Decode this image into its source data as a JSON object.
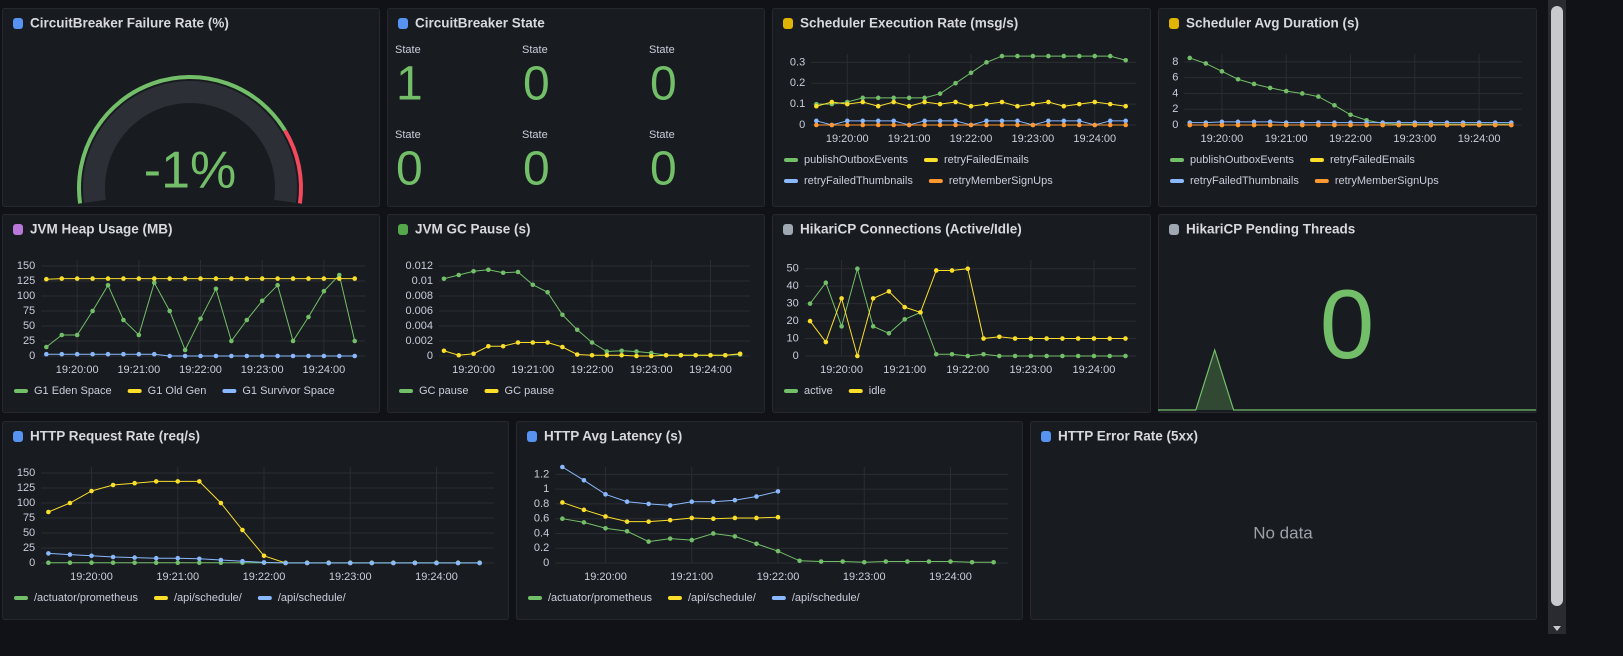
{
  "chart_data": [
    {
      "type": "gauge",
      "title": "CircuitBreaker Failure Rate (%)",
      "value": -1,
      "value_label": "-1%",
      "ylim": [
        0,
        100
      ],
      "color": "#73bf69",
      "thresholds": [
        {
          "value": 80,
          "color": "#f2495c"
        }
      ]
    },
    {
      "type": "stat",
      "title": "CircuitBreaker State",
      "categories": [
        "State",
        "State",
        "State",
        "State",
        "State",
        "State"
      ],
      "values": [
        1,
        0,
        0,
        0,
        0,
        0
      ],
      "color": "#73bf69"
    },
    {
      "type": "line",
      "title": "Scheduler Execution Rate (msg/s)",
      "x": [
        "19:19:30",
        "19:19:45",
        "19:20:00",
        "19:20:15",
        "19:20:30",
        "19:20:45",
        "19:21:00",
        "19:21:15",
        "19:21:30",
        "19:21:45",
        "19:22:00",
        "19:22:15",
        "19:22:30",
        "19:22:45",
        "19:23:00",
        "19:23:15",
        "19:23:30",
        "19:23:45",
        "19:24:00",
        "19:24:15",
        "19:24:30"
      ],
      "xlim": [
        "19:19:25",
        "19:24:40"
      ],
      "xticks": [
        "19:20:00",
        "19:21:00",
        "19:22:00",
        "19:23:00",
        "19:24:00"
      ],
      "ylim": [
        0,
        0.34
      ],
      "yticks": [
        0,
        0.1,
        0.2,
        0.3
      ],
      "grid": true,
      "series": [
        {
          "name": "publishOutboxEvents",
          "color": "#73bf69",
          "values": [
            0.1,
            0.1,
            0.11,
            0.13,
            0.13,
            0.13,
            0.13,
            0.13,
            0.15,
            0.2,
            0.25,
            0.3,
            0.33,
            0.33,
            0.33,
            0.33,
            0.33,
            0.33,
            0.33,
            0.33,
            0.31
          ]
        },
        {
          "name": "retryFailedEmails",
          "color": "#fade2a",
          "values": [
            0.09,
            0.11,
            0.1,
            0.11,
            0.09,
            0.11,
            0.09,
            0.11,
            0.1,
            0.11,
            0.09,
            0.1,
            0.11,
            0.09,
            0.1,
            0.11,
            0.09,
            0.1,
            0.11,
            0.1,
            0.09
          ]
        },
        {
          "name": "retryFailedThumbnails",
          "color": "#8ab8ff",
          "values": [
            0.02,
            0,
            0.02,
            0.02,
            0.02,
            0.02,
            0,
            0.02,
            0.02,
            0.02,
            0,
            0.02,
            0.02,
            0.02,
            0,
            0.02,
            0.02,
            0.02,
            0,
            0.02,
            0.02
          ]
        },
        {
          "name": "retryMemberSignUps",
          "color": "#ff9830",
          "values": [
            0,
            0,
            0,
            0,
            0,
            0,
            0,
            0,
            0,
            0,
            0,
            0,
            0,
            0,
            0,
            0,
            0,
            0,
            0,
            0,
            0
          ]
        }
      ]
    },
    {
      "type": "line",
      "title": "Scheduler Avg Duration (s)",
      "x": [
        "19:19:30",
        "19:19:45",
        "19:20:00",
        "19:20:15",
        "19:20:30",
        "19:20:45",
        "19:21:00",
        "19:21:15",
        "19:21:30",
        "19:21:45",
        "19:22:00",
        "19:22:15",
        "19:22:30",
        "19:22:45",
        "19:23:00",
        "19:23:15",
        "19:23:30",
        "19:23:45",
        "19:24:00",
        "19:24:15",
        "19:24:30"
      ],
      "xlim": [
        "19:19:25",
        "19:24:40"
      ],
      "xticks": [
        "19:20:00",
        "19:21:00",
        "19:22:00",
        "19:23:00",
        "19:24:00"
      ],
      "ylim": [
        0,
        9
      ],
      "yticks": [
        0,
        2,
        4,
        6,
        8
      ],
      "grid": true,
      "series": [
        {
          "name": "publishOutboxEvents",
          "color": "#73bf69",
          "values": [
            8.5,
            7.8,
            6.8,
            5.8,
            5.2,
            4.7,
            4.3,
            4,
            3.6,
            2.5,
            1.3,
            0.6,
            0.2,
            0.1,
            0.1,
            0.1,
            0.1,
            0.1,
            0.1,
            0.1,
            0.1
          ]
        },
        {
          "name": "retryFailedEmails",
          "color": "#fade2a",
          "values": [
            0,
            0,
            0,
            0,
            0,
            0,
            0,
            0,
            0,
            0,
            0,
            0,
            0,
            0,
            0,
            0,
            0,
            0,
            0,
            0,
            0
          ]
        },
        {
          "name": "retryFailedThumbnails",
          "color": "#8ab8ff",
          "values": [
            0.3,
            0.3,
            0.4,
            0.4,
            0.4,
            0.4,
            0.3,
            0.3,
            0.3,
            0.3,
            0.3,
            0.3,
            0.3,
            0.3,
            0.3,
            0.3,
            0.3,
            0.3,
            0.3,
            0.3,
            0.3
          ]
        },
        {
          "name": "retryMemberSignUps",
          "color": "#ff9830",
          "values": [
            0,
            0,
            0,
            0,
            0,
            0,
            0,
            0,
            0,
            0,
            0,
            0,
            0,
            0,
            0,
            0,
            0,
            0,
            0,
            0,
            0
          ]
        }
      ]
    },
    {
      "type": "line",
      "title": "JVM Heap Usage (MB)",
      "x": [
        "19:19:30",
        "19:19:45",
        "19:20:00",
        "19:20:15",
        "19:20:30",
        "19:20:45",
        "19:21:00",
        "19:21:15",
        "19:21:30",
        "19:21:45",
        "19:22:00",
        "19:22:15",
        "19:22:30",
        "19:22:45",
        "19:23:00",
        "19:23:15",
        "19:23:30",
        "19:23:45",
        "19:24:00",
        "19:24:15",
        "19:24:30"
      ],
      "xlim": [
        "19:19:25",
        "19:24:40"
      ],
      "xticks": [
        "19:20:00",
        "19:21:00",
        "19:22:00",
        "19:23:00",
        "19:24:00"
      ],
      "ylim": [
        0,
        160
      ],
      "yticks": [
        0,
        25,
        50,
        75,
        100,
        125,
        150
      ],
      "grid": true,
      "series": [
        {
          "name": "G1 Eden Space",
          "color": "#73bf69",
          "values": [
            15,
            35,
            35,
            75,
            118,
            60,
            35,
            122,
            75,
            10,
            62,
            112,
            25,
            60,
            92,
            118,
            25,
            65,
            108,
            135,
            25
          ]
        },
        {
          "name": "G1 Old Gen",
          "color": "#fade2a",
          "values": [
            128,
            129,
            129,
            129,
            129,
            129,
            129,
            129,
            129,
            129,
            129,
            129,
            129,
            129,
            129,
            129,
            129,
            129,
            129,
            129,
            129
          ]
        },
        {
          "name": "G1 Survivor Space",
          "color": "#8ab8ff",
          "values": [
            3,
            3,
            3,
            3,
            3,
            3,
            3,
            3,
            0,
            0,
            0,
            0,
            0,
            0,
            0,
            0,
            0,
            0,
            0,
            0,
            0
          ]
        }
      ]
    },
    {
      "type": "line",
      "title": "JVM GC Pause (s)",
      "x": [
        "19:19:30",
        "19:19:45",
        "19:20:00",
        "19:20:15",
        "19:20:30",
        "19:20:45",
        "19:21:00",
        "19:21:15",
        "19:21:30",
        "19:21:45",
        "19:22:00",
        "19:22:15",
        "19:22:30",
        "19:22:45",
        "19:23:00",
        "19:23:15",
        "19:23:30",
        "19:23:45",
        "19:24:00",
        "19:24:15",
        "19:24:30"
      ],
      "xlim": [
        "19:19:25",
        "19:24:40"
      ],
      "xticks": [
        "19:20:00",
        "19:21:00",
        "19:22:00",
        "19:23:00",
        "19:24:00"
      ],
      "ylim": [
        0,
        0.0128
      ],
      "yticks": [
        0,
        0.002,
        0.004,
        0.006,
        0.008,
        0.01,
        0.012
      ],
      "grid": true,
      "series": [
        {
          "name": "GC pause",
          "color": "#73bf69",
          "values": [
            0.0103,
            0.0108,
            0.0113,
            0.0115,
            0.0111,
            0.0112,
            0.0095,
            0.0085,
            0.0055,
            0.0035,
            0.0018,
            0.0006,
            0.0007,
            0.0006,
            0.0004,
            0.0001,
            0.0001,
            0.0001,
            0.0001,
            0.0001,
            0.0002
          ]
        },
        {
          "name": "GC pause",
          "color": "#fade2a",
          "values": [
            0.0007,
            0.0001,
            0.0003,
            0.0013,
            0.0013,
            0.0018,
            0.0018,
            0.0018,
            0.0012,
            0.0002,
            0.0001,
            0.0001,
            0.0001,
            0,
            0,
            0.0001,
            0.0001,
            0.0001,
            0.0001,
            0.0001,
            0.0003
          ]
        }
      ]
    },
    {
      "type": "line",
      "title": "HikariCP Connections (Active/Idle)",
      "x": [
        "19:19:30",
        "19:19:45",
        "19:20:00",
        "19:20:15",
        "19:20:30",
        "19:20:45",
        "19:21:00",
        "19:21:15",
        "19:21:30",
        "19:21:45",
        "19:22:00",
        "19:22:15",
        "19:22:30",
        "19:22:45",
        "19:23:00",
        "19:23:15",
        "19:23:30",
        "19:23:45",
        "19:24:00",
        "19:24:15",
        "19:24:30"
      ],
      "xlim": [
        "19:19:25",
        "19:24:40"
      ],
      "xticks": [
        "19:20:00",
        "19:21:00",
        "19:22:00",
        "19:23:00",
        "19:24:00"
      ],
      "ylim": [
        0,
        55
      ],
      "yticks": [
        0,
        10,
        20,
        30,
        40,
        50
      ],
      "grid": true,
      "series": [
        {
          "name": "active",
          "color": "#73bf69",
          "values": [
            30,
            42,
            17,
            50,
            17,
            13,
            21,
            25,
            1,
            1,
            0,
            1,
            0,
            0,
            0,
            0,
            0,
            0,
            0,
            0,
            0
          ]
        },
        {
          "name": "idle",
          "color": "#fade2a",
          "values": [
            20,
            8,
            33,
            0,
            33,
            37,
            28,
            25,
            49,
            49,
            50,
            10,
            11,
            10,
            10,
            10,
            10,
            10,
            10,
            10,
            10
          ]
        }
      ]
    },
    {
      "type": "stat",
      "title": "HikariCP Pending Threads",
      "value": 0,
      "color": "#73bf69",
      "sparkline": [
        0,
        0,
        0,
        1,
        0,
        0,
        0,
        0,
        0,
        0,
        0,
        0,
        0,
        0,
        0,
        0,
        0,
        0,
        0,
        0,
        0
      ],
      "ylim": [
        0,
        3
      ]
    },
    {
      "type": "line",
      "title": "HTTP Request Rate (req/s)",
      "x": [
        "19:19:30",
        "19:19:45",
        "19:20:00",
        "19:20:15",
        "19:20:30",
        "19:20:45",
        "19:21:00",
        "19:21:15",
        "19:21:30",
        "19:21:45",
        "19:22:00",
        "19:22:15",
        "19:22:30",
        "19:22:45",
        "19:23:00",
        "19:23:15",
        "19:23:30",
        "19:23:45",
        "19:24:00",
        "19:24:15",
        "19:24:30"
      ],
      "xlim": [
        "19:19:25",
        "19:24:40"
      ],
      "xticks": [
        "19:20:00",
        "19:21:00",
        "19:22:00",
        "19:23:00",
        "19:24:00"
      ],
      "ylim": [
        0,
        160
      ],
      "yticks": [
        0,
        25,
        50,
        75,
        100,
        125,
        150
      ],
      "grid": true,
      "series": [
        {
          "name": "/actuator/prometheus",
          "color": "#73bf69",
          "values": [
            0.5,
            0.5,
            0.5,
            0.5,
            0.5,
            0.5,
            0.5,
            0.5,
            0.5,
            0.5,
            0.5,
            0.5,
            0.5,
            0.5,
            0.5,
            0.5,
            0.5,
            0.5,
            0.5,
            0.5,
            0.5
          ]
        },
        {
          "name": "/api/schedule/",
          "color": "#fade2a",
          "values": [
            85,
            100,
            120,
            130,
            133,
            136,
            136,
            136,
            100,
            55,
            12,
            0,
            0,
            0,
            0,
            0,
            0,
            0,
            0,
            0,
            0
          ]
        },
        {
          "name": "/api/schedule/",
          "color": "#8ab8ff",
          "values": [
            16,
            14,
            12,
            10,
            9,
            8,
            8,
            7,
            5,
            3,
            1,
            0,
            0,
            0,
            0,
            0,
            0,
            0,
            0,
            0,
            0
          ]
        }
      ]
    },
    {
      "type": "line",
      "title": "HTTP Avg Latency (s)",
      "x": [
        "19:19:30",
        "19:19:45",
        "19:20:00",
        "19:20:15",
        "19:20:30",
        "19:20:45",
        "19:21:00",
        "19:21:15",
        "19:21:30",
        "19:21:45",
        "19:22:00",
        "19:22:15",
        "19:22:30",
        "19:22:45",
        "19:23:00",
        "19:23:15",
        "19:23:30",
        "19:23:45",
        "19:24:00",
        "19:24:15",
        "19:24:30"
      ],
      "xlim": [
        "19:19:25",
        "19:24:40"
      ],
      "xticks": [
        "19:20:00",
        "19:21:00",
        "19:22:00",
        "19:23:00",
        "19:24:00"
      ],
      "ylim": [
        0,
        1.3
      ],
      "yticks": [
        0,
        0.2,
        0.4,
        0.6,
        0.8,
        1,
        1.2
      ],
      "grid": true,
      "series": [
        {
          "name": "/actuator/prometheus",
          "color": "#73bf69",
          "values": [
            0.6,
            0.55,
            0.47,
            0.43,
            0.29,
            0.33,
            0.31,
            0.4,
            0.36,
            0.26,
            0.16,
            0.03,
            0.02,
            0.02,
            0.01,
            0.02,
            0.02,
            0.02,
            0.02,
            0.01,
            0.01
          ]
        },
        {
          "name": "/api/schedule/",
          "color": "#fade2a",
          "values": [
            0.82,
            0.72,
            0.63,
            0.56,
            0.56,
            0.58,
            0.61,
            0.6,
            0.61,
            0.61,
            0.62,
            null,
            null,
            null,
            null,
            null,
            null,
            null,
            null,
            null,
            null
          ]
        },
        {
          "name": "/api/schedule/",
          "color": "#8ab8ff",
          "values": [
            1.3,
            1.12,
            0.93,
            0.83,
            0.8,
            0.78,
            0.83,
            0.83,
            0.85,
            0.9,
            0.97,
            null,
            null,
            null,
            null,
            null,
            null,
            null,
            null,
            null,
            null
          ]
        }
      ]
    },
    {
      "type": "empty",
      "title": "HTTP Error Rate (5xx)",
      "message": "No data"
    }
  ]
}
